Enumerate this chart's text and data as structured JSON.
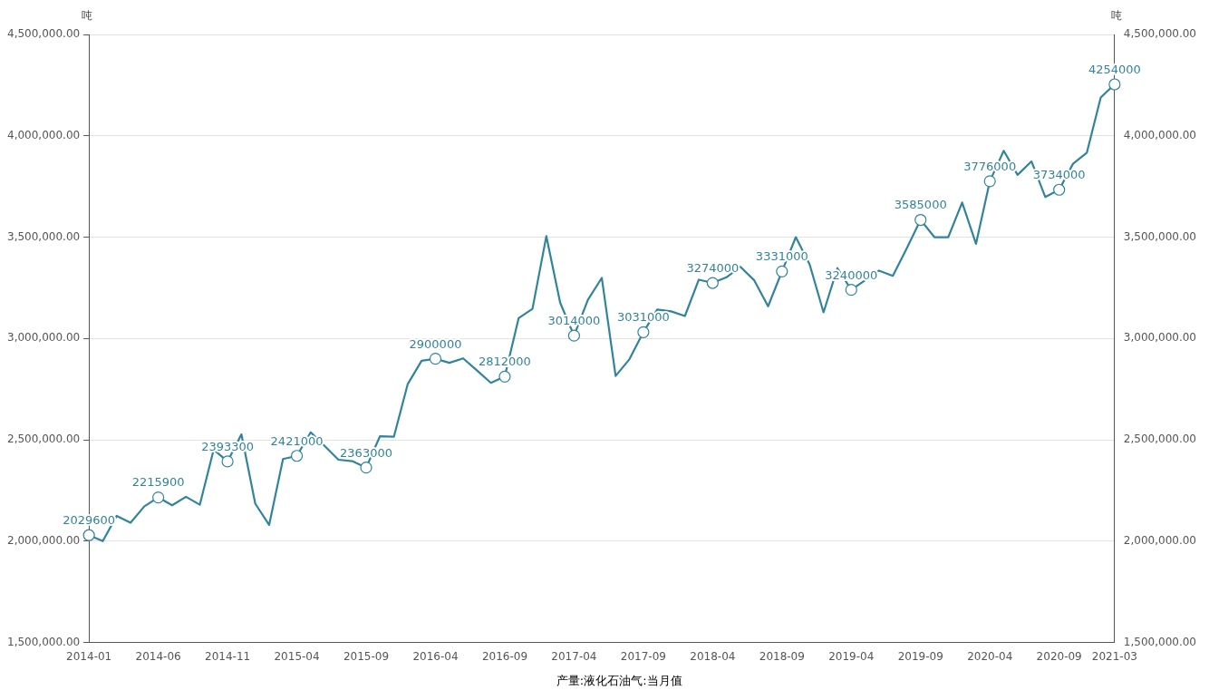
{
  "chart_data": {
    "type": "line",
    "ylabel": "吨",
    "y2label": "吨",
    "categories": [
      "2014-01",
      null,
      null,
      null,
      null,
      "2014-06",
      null,
      null,
      null,
      null,
      "2014-11",
      null,
      null,
      null,
      null,
      "2015-04",
      null,
      null,
      null,
      null,
      "2015-09",
      null,
      null,
      null,
      null,
      "2016-04",
      null,
      null,
      null,
      null,
      "2016-09",
      null,
      null,
      null,
      null,
      "2017-04",
      null,
      null,
      null,
      null,
      "2017-09",
      null,
      null,
      null,
      null,
      "2018-04",
      null,
      null,
      null,
      null,
      "2018-09",
      null,
      null,
      null,
      null,
      "2019-04",
      null,
      null,
      null,
      null,
      "2019-09",
      null,
      null,
      null,
      null,
      "2020-04",
      null,
      null,
      null,
      null,
      "2020-09",
      null,
      null,
      null,
      "2021-03"
    ],
    "series": [
      {
        "name": "产量:液化石油气:当月值",
        "color": "#31849b",
        "values": [
          2029600,
          2000000,
          2125000,
          2091000,
          2172000,
          2215900,
          2177000,
          2219000,
          2180000,
          2452000,
          2393300,
          2527000,
          2185000,
          2080000,
          2405000,
          2421000,
          2537000,
          2470000,
          2402000,
          2395000,
          2363000,
          2518000,
          2515000,
          2775000,
          2890000,
          2900000,
          2880000,
          2902000,
          2842000,
          2781000,
          2812000,
          3100000,
          3146000,
          3505000,
          3176000,
          3014000,
          3191000,
          3299000,
          2815000,
          2898000,
          3031000,
          3143000,
          3134000,
          3111000,
          3290000,
          3274000,
          3302000,
          3354000,
          3287000,
          3159000,
          3331000,
          3500000,
          3365000,
          3129000,
          3347000,
          3240000,
          3287000,
          3335000,
          3309000,
          3444000,
          3585000,
          3500000,
          3500000,
          3671000,
          3467000,
          3776000,
          3926000,
          3807000,
          3874000,
          3698000,
          3734000,
          3862000,
          3917000,
          4189000,
          4254000
        ],
        "value_labels": [
          "2029600",
          null,
          null,
          null,
          null,
          "2215900",
          null,
          null,
          null,
          null,
          "2393300",
          null,
          null,
          null,
          null,
          "2421000",
          null,
          null,
          null,
          null,
          "2363000",
          null,
          null,
          null,
          null,
          "2900000",
          null,
          null,
          null,
          null,
          "2812000",
          null,
          null,
          null,
          null,
          "3014000",
          null,
          null,
          null,
          null,
          "3031000",
          null,
          null,
          null,
          null,
          "3274000",
          null,
          null,
          null,
          null,
          "3331000",
          null,
          null,
          null,
          null,
          "3240000",
          null,
          null,
          null,
          null,
          "3585000",
          null,
          null,
          null,
          null,
          "3776000",
          null,
          null,
          null,
          null,
          "3734000",
          null,
          null,
          null,
          "4254000"
        ]
      }
    ],
    "ylim": [
      1500000,
      4500000
    ],
    "yticks": [
      {
        "value": 1500000,
        "label": "1,500,000.00"
      },
      {
        "value": 2000000,
        "label": "2,000,000.00"
      },
      {
        "value": 2500000,
        "label": "2,500,000.00"
      },
      {
        "value": 3000000,
        "label": "3,000,000.00"
      },
      {
        "value": 3500000,
        "label": "3,500,000.00"
      },
      {
        "value": 4000000,
        "label": "4,000,000.00"
      },
      {
        "value": 4500000,
        "label": "4,500,000.00"
      }
    ],
    "y2lim": [
      1500000,
      4500000
    ],
    "y2ticks": [
      {
        "value": 1500000,
        "label": "1,500,000.00"
      },
      {
        "value": 2000000,
        "label": "2,000,000.00"
      },
      {
        "value": 2500000,
        "label": "2,500,000.00"
      },
      {
        "value": 3000000,
        "label": "3,000,000.00"
      },
      {
        "value": 3500000,
        "label": "3,500,000.00"
      },
      {
        "value": 4000000,
        "label": "4,000,000.00"
      },
      {
        "value": 4500000,
        "label": "4,500,000.00"
      }
    ],
    "grid": "y",
    "legend": "bottom",
    "line_style": "solid"
  }
}
